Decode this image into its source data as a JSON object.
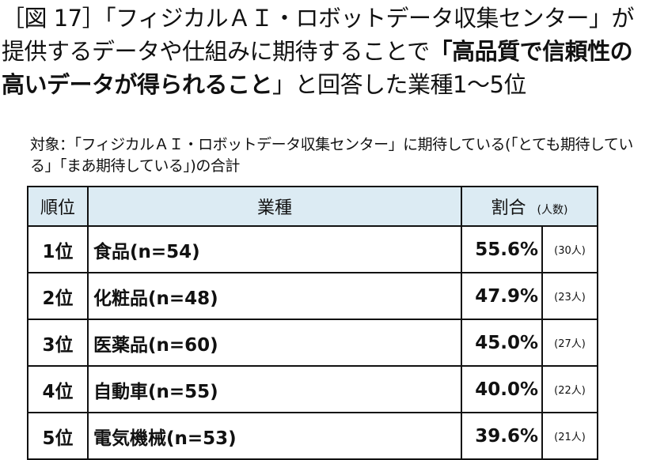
{
  "title": {
    "part1": "［図 17］「フィジカルＡＩ・ロボットデータ収集センター」が提供するデータや仕組みに期待することで",
    "bold": "「高品質で信頼性の高いデータが得られること",
    "part2": "」と回答した業種1〜5位"
  },
  "subtitle": "対象：「フィジカルＡＩ・ロボットデータ収集センター」に期待している(「とても期待している」「まあ期待している」)の合計",
  "table": {
    "headers": {
      "rank": "順位",
      "industry": "業種",
      "ratio": "割合",
      "count": "(人数)"
    },
    "header_bg": "#dcebf3",
    "rows": [
      {
        "rank": "1位",
        "industry": "食品(n=54)",
        "ratio": "55.6%",
        "count": "(30人)"
      },
      {
        "rank": "2位",
        "industry": "化粧品(n=48)",
        "ratio": "47.9%",
        "count": "(23人)"
      },
      {
        "rank": "3位",
        "industry": "医薬品(n=60)",
        "ratio": "45.0%",
        "count": "(27人)"
      },
      {
        "rank": "4位",
        "industry": "自動車(n=55)",
        "ratio": "40.0%",
        "count": "(22人)"
      },
      {
        "rank": "5位",
        "industry": "電気機械(n=53)",
        "ratio": "39.6%",
        "count": "(21人)"
      }
    ]
  }
}
